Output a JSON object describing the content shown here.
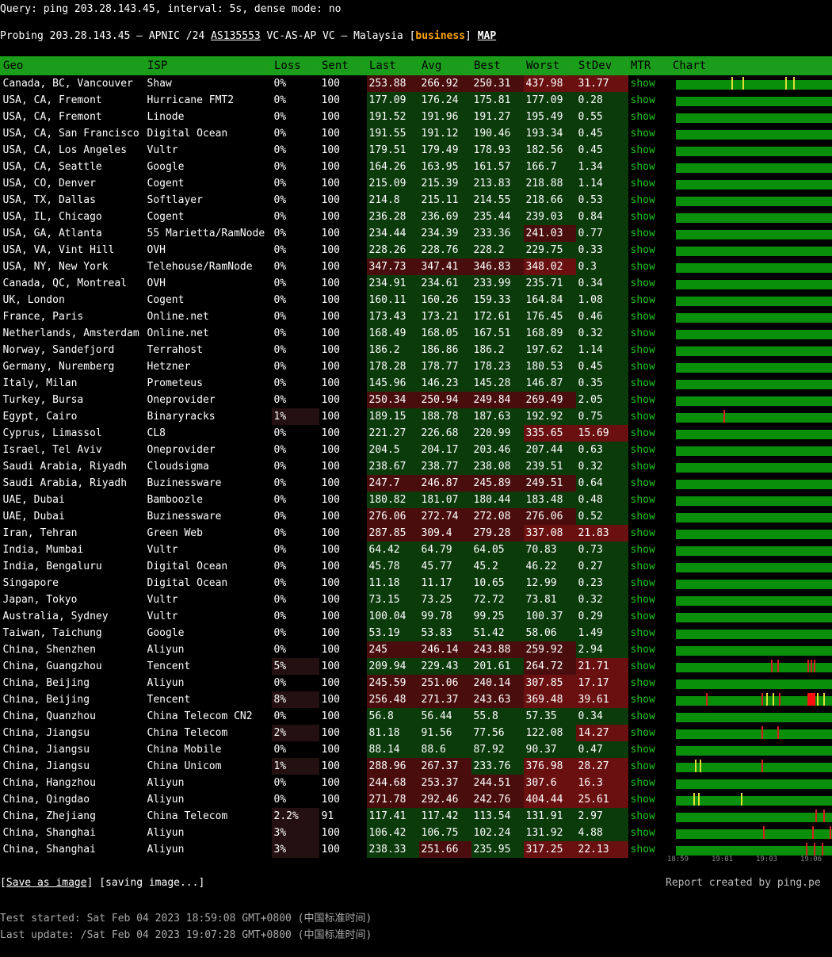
{
  "query": "Query: ping 203.28.143.45, interval: 5s, dense mode: no",
  "probe": {
    "prefix": "Probing 203.28.143.45 — APNIC /24 ",
    "asn": "AS135553",
    "mid": " VC-AS-AP VC — Malaysia [",
    "tag": "business",
    "end": "] ",
    "map": "MAP"
  },
  "headers": [
    "Geo",
    "ISP",
    "Loss",
    "Sent",
    "Last",
    "Avg",
    "Best",
    "Worst",
    "StDev",
    "MTR",
    "Chart"
  ],
  "rows": [
    [
      "Canada, BC, Vancouver",
      "Shaw",
      "0%",
      "100",
      "253.88",
      "266.92",
      "250.31",
      "437.98",
      "31.77",
      "show"
    ],
    [
      "USA, CA, Fremont",
      "Hurricane FMT2",
      "0%",
      "100",
      "177.09",
      "176.24",
      "175.81",
      "177.09",
      "0.28",
      "show"
    ],
    [
      "USA, CA, Fremont",
      "Linode",
      "0%",
      "100",
      "191.52",
      "191.96",
      "191.27",
      "195.49",
      "0.55",
      "show"
    ],
    [
      "USA, CA, San Francisco",
      "Digital Ocean",
      "0%",
      "100",
      "191.55",
      "191.12",
      "190.46",
      "193.34",
      "0.45",
      "show"
    ],
    [
      "USA, CA, Los Angeles",
      "Vultr",
      "0%",
      "100",
      "179.51",
      "179.49",
      "178.93",
      "182.56",
      "0.45",
      "show"
    ],
    [
      "USA, CA, Seattle",
      "Google",
      "0%",
      "100",
      "164.26",
      "163.95",
      "161.57",
      "166.7",
      "1.34",
      "show"
    ],
    [
      "USA, CO, Denver",
      "Cogent",
      "0%",
      "100",
      "215.09",
      "215.39",
      "213.83",
      "218.88",
      "1.14",
      "show"
    ],
    [
      "USA, TX, Dallas",
      "Softlayer",
      "0%",
      "100",
      "214.8",
      "215.11",
      "214.55",
      "218.66",
      "0.53",
      "show"
    ],
    [
      "USA, IL, Chicago",
      "Cogent",
      "0%",
      "100",
      "236.28",
      "236.69",
      "235.44",
      "239.03",
      "0.84",
      "show"
    ],
    [
      "USA, GA, Atlanta",
      "55 Marietta/RamNode",
      "0%",
      "100",
      "234.44",
      "234.39",
      "233.36",
      "241.03",
      "0.77",
      "show"
    ],
    [
      "USA, VA, Vint Hill",
      "OVH",
      "0%",
      "100",
      "228.26",
      "228.76",
      "228.2",
      "229.75",
      "0.33",
      "show"
    ],
    [
      "USA, NY, New York",
      "Telehouse/RamNode",
      "0%",
      "100",
      "347.73",
      "347.41",
      "346.83",
      "348.02",
      "0.3",
      "show"
    ],
    [
      "Canada, QC, Montreal",
      "OVH",
      "0%",
      "100",
      "234.91",
      "234.61",
      "233.99",
      "235.71",
      "0.34",
      "show"
    ],
    [
      "UK, London",
      "Cogent",
      "0%",
      "100",
      "160.11",
      "160.26",
      "159.33",
      "164.84",
      "1.08",
      "show"
    ],
    [
      "France, Paris",
      "Online.net",
      "0%",
      "100",
      "173.43",
      "173.21",
      "172.61",
      "176.45",
      "0.46",
      "show"
    ],
    [
      "Netherlands, Amsterdam",
      "Online.net",
      "0%",
      "100",
      "168.49",
      "168.05",
      "167.51",
      "168.89",
      "0.32",
      "show"
    ],
    [
      "Norway, Sandefjord",
      "Terrahost",
      "0%",
      "100",
      "186.2",
      "186.86",
      "186.2",
      "197.62",
      "1.14",
      "show"
    ],
    [
      "Germany, Nuremberg",
      "Hetzner",
      "0%",
      "100",
      "178.28",
      "178.77",
      "178.23",
      "180.53",
      "0.45",
      "show"
    ],
    [
      "Italy, Milan",
      "Prometeus",
      "0%",
      "100",
      "145.96",
      "146.23",
      "145.28",
      "146.87",
      "0.35",
      "show"
    ],
    [
      "Turkey, Bursa",
      "Oneprovider",
      "0%",
      "100",
      "250.34",
      "250.94",
      "249.84",
      "269.49",
      "2.05",
      "show"
    ],
    [
      "Egypt, Cairo",
      "Binaryracks",
      "1%",
      "100",
      "189.15",
      "188.78",
      "187.63",
      "192.92",
      "0.75",
      "show"
    ],
    [
      "Cyprus, Limassol",
      "CL8",
      "0%",
      "100",
      "221.27",
      "226.68",
      "220.99",
      "335.65",
      "15.69",
      "show"
    ],
    [
      "Israel, Tel Aviv",
      "Oneprovider",
      "0%",
      "100",
      "204.5",
      "204.17",
      "203.46",
      "207.44",
      "0.63",
      "show"
    ],
    [
      "Saudi Arabia, Riyadh",
      "Cloudsigma",
      "0%",
      "100",
      "238.67",
      "238.77",
      "238.08",
      "239.51",
      "0.32",
      "show"
    ],
    [
      "Saudi Arabia, Riyadh",
      "Buzinessware",
      "0%",
      "100",
      "247.7",
      "246.87",
      "245.89",
      "249.51",
      "0.64",
      "show"
    ],
    [
      "UAE, Dubai",
      "Bamboozle",
      "0%",
      "100",
      "180.82",
      "181.07",
      "180.44",
      "183.48",
      "0.48",
      "show"
    ],
    [
      "UAE, Dubai",
      "Buzinessware",
      "0%",
      "100",
      "276.06",
      "272.74",
      "272.08",
      "276.06",
      "0.52",
      "show"
    ],
    [
      "Iran, Tehran",
      "Green Web",
      "0%",
      "100",
      "287.85",
      "309.4",
      "279.28",
      "337.08",
      "21.83",
      "show"
    ],
    [
      "India, Mumbai",
      "Vultr",
      "0%",
      "100",
      "64.42",
      "64.79",
      "64.05",
      "70.83",
      "0.73",
      "show"
    ],
    [
      "India, Bengaluru",
      "Digital Ocean",
      "0%",
      "100",
      "45.78",
      "45.77",
      "45.2",
      "46.22",
      "0.27",
      "show"
    ],
    [
      "Singapore",
      "Digital Ocean",
      "0%",
      "100",
      "11.18",
      "11.17",
      "10.65",
      "12.99",
      "0.23",
      "show"
    ],
    [
      "Japan, Tokyo",
      "Vultr",
      "0%",
      "100",
      "73.15",
      "73.25",
      "72.72",
      "73.81",
      "0.32",
      "show"
    ],
    [
      "Australia, Sydney",
      "Vultr",
      "0%",
      "100",
      "100.04",
      "99.78",
      "99.25",
      "100.37",
      "0.29",
      "show"
    ],
    [
      "Taiwan, Taichung",
      "Google",
      "0%",
      "100",
      "53.19",
      "53.83",
      "51.42",
      "58.06",
      "1.49",
      "show"
    ],
    [
      "China, Shenzhen",
      "Aliyun",
      "0%",
      "100",
      "245",
      "246.14",
      "243.88",
      "259.92",
      "2.94",
      "show"
    ],
    [
      "China, Guangzhou",
      "Tencent",
      "5%",
      "100",
      "209.94",
      "229.43",
      "201.61",
      "264.72",
      "21.71",
      "show"
    ],
    [
      "China, Beijing",
      "Aliyun",
      "0%",
      "100",
      "245.59",
      "251.06",
      "240.14",
      "307.85",
      "17.17",
      "show"
    ],
    [
      "China, Beijing",
      "Tencent",
      "8%",
      "100",
      "256.48",
      "271.37",
      "243.63",
      "369.48",
      "39.61",
      "show"
    ],
    [
      "China, Quanzhou",
      "China Telecom CN2",
      "0%",
      "100",
      "56.8",
      "56.44",
      "55.8",
      "57.35",
      "0.34",
      "show"
    ],
    [
      "China, Jiangsu",
      "China Telecom",
      "2%",
      "100",
      "81.18",
      "91.56",
      "77.56",
      "122.08",
      "14.27",
      "show"
    ],
    [
      "China, Jiangsu",
      "China Mobile",
      "0%",
      "100",
      "88.14",
      "88.6",
      "87.92",
      "90.37",
      "0.47",
      "show"
    ],
    [
      "China, Jiangsu",
      "China Unicom",
      "1%",
      "100",
      "288.96",
      "267.37",
      "233.76",
      "376.98",
      "28.27",
      "show"
    ],
    [
      "China, Hangzhou",
      "Aliyun",
      "0%",
      "100",
      "244.68",
      "253.37",
      "244.51",
      "307.6",
      "16.3",
      "show"
    ],
    [
      "China, Qingdao",
      "Aliyun",
      "0%",
      "100",
      "271.78",
      "292.46",
      "242.76",
      "404.44",
      "25.61",
      "show"
    ],
    [
      "China, Zhejiang",
      "China Telecom",
      "2.2%",
      "91",
      "117.41",
      "117.42",
      "113.54",
      "131.91",
      "2.97",
      "show"
    ],
    [
      "China, Shanghai",
      "Aliyun",
      "3%",
      "100",
      "106.42",
      "106.75",
      "102.24",
      "131.92",
      "4.88",
      "show"
    ],
    [
      "China, Shanghai",
      "Aliyun",
      "3%",
      "100",
      "238.33",
      "251.66",
      "235.95",
      "317.25",
      "22.13",
      "show"
    ]
  ],
  "chart_axis": [
    "18:59",
    "19:01",
    "19:03",
    "19:06"
  ],
  "save": {
    "open": "[",
    "link": "Save as image",
    "close": "] [saving image...]"
  },
  "credit": "Report created by ping.pe",
  "started": "Test started: Sat Feb 04 2023 18:59:08 GMT+0800 (中国标准时间)",
  "updated": "Last update: /Sat Feb 04 2023 19:07:28 GMT+0800 (中国标准时间)",
  "colors": {
    "header": "#1b9c1b",
    "good": "#0b3a0b",
    "bad": "#4a0d0d",
    "show": "#1ec81e"
  }
}
